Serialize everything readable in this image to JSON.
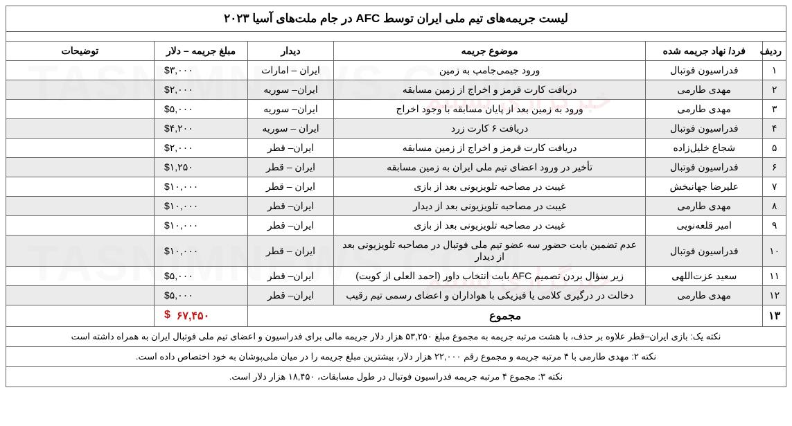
{
  "title": "لیست جریمه‌های تیم ملی ایران توسط AFC در جام ملت‌های آسیا ۲۰۲۳",
  "columns": {
    "idx": "ردیف",
    "entity": "فرد/ نهاد جریمه شده",
    "reason": "موضوع جریمه",
    "match": "دیدار",
    "amount": "مبلغ جریمه – دلار",
    "notes": "توضیحات"
  },
  "rows": [
    {
      "idx": "۱",
      "entity": "فدراسیون فوتبال",
      "reason": "ورود جیمی‌جامپ به زمین",
      "match": "ایران – امارات",
      "amount": "۳,۰۰۰",
      "notes": ""
    },
    {
      "idx": "۲",
      "entity": "مهدی طارمی",
      "reason": "دریافت کارت قرمز و  اخراج از زمین مسابقه",
      "match": "ایران– سوریه",
      "amount": "۲,۰۰۰",
      "notes": ""
    },
    {
      "idx": "۳",
      "entity": "مهدی طارمی",
      "reason": "ورود به زمین بعد از پایان مسابقه با وجود اخراج",
      "match": "ایران– سوریه",
      "amount": "۵,۰۰۰",
      "notes": ""
    },
    {
      "idx": "۴",
      "entity": "فدراسیون فوتبال",
      "reason": "دریافت ۶ کارت زرد",
      "match": "ایران – سوریه",
      "amount": "۴,۲۰۰",
      "notes": ""
    },
    {
      "idx": "۵",
      "entity": "شجاع خلیل‌زاده",
      "reason": "دریافت کارت قرمز و اخراج از زمین مسابقه",
      "match": "ایران– قطر",
      "amount": "۲,۰۰۰",
      "notes": ""
    },
    {
      "idx": "۶",
      "entity": "فدراسیون فوتبال",
      "reason": "تأخیر در ورود اعضای تیم ملی ایران به زمین مسابقه",
      "match": "ایران – قطر",
      "amount": "۱,۲۵۰",
      "notes": ""
    },
    {
      "idx": "۷",
      "entity": "علیرضا جهانبخش",
      "reason": "غیبت در مصاحبه تلویزیونی بعد از بازی",
      "match": "ایران – قطر",
      "amount": "۱۰,۰۰۰",
      "notes": ""
    },
    {
      "idx": "۸",
      "entity": "مهدی طارمی",
      "reason": "غیبت در مصاحبه تلویزیونی بعد از دیدار",
      "match": "ایران– قطر",
      "amount": "۱۰,۰۰۰",
      "notes": ""
    },
    {
      "idx": "۹",
      "entity": "امیر قلعه‌نویی",
      "reason": "غیبت در مصاحبه تلویزیونی بعد از بازی",
      "match": "ایران– قطر",
      "amount": "۱۰,۰۰۰",
      "notes": ""
    },
    {
      "idx": "۱۰",
      "entity": "فدراسیون فوتبال",
      "reason": "عدم تضمین بابت حضور سه عضو تیم ملی فوتبال در مصاحبه تلویزیونی بعد از دیدار",
      "match": "ایران – قطر",
      "amount": "۱۰,۰۰۰",
      "notes": ""
    },
    {
      "idx": "۱۱",
      "entity": "سعید عزت‌اللهی",
      "reason": "زیر سؤال بردن تصمیم AFC بابت انتخاب داور  (احمد العلی از کویت)",
      "match": "ایران– قطر",
      "amount": "۵,۰۰۰",
      "notes": ""
    },
    {
      "idx": "۱۲",
      "entity": "مهدی طارمی",
      "reason": "دخالت در درگیری کلامی یا فیزیکی با هواداران و اعضای رسمی تیم رقیب",
      "match": "ایران– قطر",
      "amount": "۵,۰۰۰",
      "notes": ""
    }
  ],
  "total": {
    "idx": "۱۳",
    "label": "مجموع",
    "amount": "۶۷,۴۵۰"
  },
  "currency": "$",
  "notes": [
    "نکته یک: بازی ایران–قطر علاوه بر حذف، با هشت مرتبه جریمه به مجموع مبلغ ۵۳,۲۵۰ هزار دلار جریمه مالی برای فدراسیون و اعضای تیم ملی فوتبال ایران به همراه داشته است",
    "نکته ۲: مهدی طارمی با ۴ مرتبه جریمه و مجموع رقم ۲۲,۰۰۰ هزار دلار، بیشترین مبلغ جریمه را در میان ملی‌پوشان به خود اختصاص داده است.",
    "نکته ۳: مجموع ۴ مرتبه جریمه فدراسیون فوتبال در طول مسابقات، ۱۸,۴۵۰ هزار دلار  است."
  ],
  "style": {
    "title_fontsize": 17,
    "header_fontsize": 14,
    "cell_fontsize": 14,
    "note_fontsize": 13,
    "border_color": "#666666",
    "even_row_bg": "rgba(215,215,215,0.5)",
    "total_color": "#c01818",
    "background": "#ffffff"
  }
}
